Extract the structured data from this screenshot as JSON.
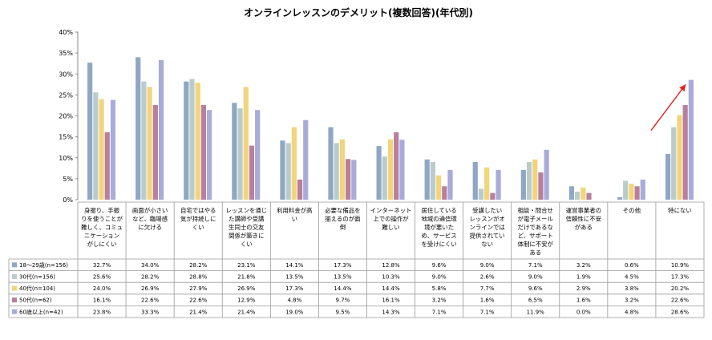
{
  "chart_data": {
    "type": "bar",
    "title": "オンラインレッスンのデメリット(複数回答)(年代別)",
    "ylim": [
      0,
      40
    ],
    "ytick_labels": [
      "0%",
      "5%",
      "10%",
      "15%",
      "20%",
      "25%",
      "30%",
      "35%",
      "40%"
    ],
    "grid": false,
    "legend": "table-bottom",
    "categories": [
      [
        "身振り、手振",
        "りを使うことが",
        "難しく、コミュ",
        "ニケーション",
        "がしにくい"
      ],
      [
        "画面が小さい",
        "など、臨場感",
        "に欠ける"
      ],
      [
        "自宅ではやる",
        "気が持続しに",
        "くい"
      ],
      [
        "レッスンを通じ",
        "た講師や受講",
        "生同士の交友",
        "関係が築きに",
        "くい"
      ],
      [
        "利用料金が高",
        "い"
      ],
      [
        "必要な備品を",
        "揃えるのが面",
        "倒"
      ],
      [
        "インターネット",
        "上での操作が",
        "難しい"
      ],
      [
        "居住している",
        "地域の通信環",
        "境が悪いた",
        "め、サービス",
        "を受けにくい"
      ],
      [
        "受講したい",
        "レッスンがオ",
        "ンラインでは",
        "提供されてい",
        "ない"
      ],
      [
        "相談・問合せ",
        "が電子メール",
        "だけであるな",
        "ど、サポート",
        "体制に不安が",
        "ある"
      ],
      [
        "運営事業者の",
        "信頼性に不安",
        "がある"
      ],
      [
        "その他"
      ],
      [
        "特にない"
      ]
    ],
    "series": [
      {
        "name": "18～29歳(n=156)",
        "color": "#8fa7c4",
        "values": [
          32.7,
          34.0,
          28.2,
          23.1,
          14.1,
          17.3,
          12.8,
          9.6,
          9.0,
          7.1,
          3.2,
          0.6,
          10.9
        ],
        "labels": [
          "32.7%",
          "34.0%",
          "28.2%",
          "23.1%",
          "14.1%",
          "17.3%",
          "12.8%",
          "9.6%",
          "9.0%",
          "7.1%",
          "3.2%",
          "0.6%",
          "10.9%"
        ]
      },
      {
        "name": "30代(n=156)",
        "color": "#b9cccb",
        "values": [
          25.6,
          28.2,
          28.8,
          21.8,
          13.5,
          13.5,
          10.3,
          9.0,
          2.6,
          9.0,
          1.9,
          4.5,
          17.3
        ],
        "labels": [
          "25.6%",
          "28.2%",
          "28.8%",
          "21.8%",
          "13.5%",
          "13.5%",
          "10.3%",
          "9.0%",
          "2.6%",
          "9.0%",
          "1.9%",
          "4.5%",
          "17.3%"
        ]
      },
      {
        "name": "40代(n=104)",
        "color": "#f2d47c",
        "values": [
          24.0,
          26.9,
          27.9,
          26.9,
          17.3,
          14.4,
          14.4,
          5.8,
          7.7,
          9.6,
          2.9,
          3.8,
          20.2
        ],
        "labels": [
          "24.0%",
          "26.9%",
          "27.9%",
          "26.9%",
          "17.3%",
          "14.4%",
          "14.4%",
          "5.8%",
          "7.7%",
          "9.6%",
          "2.9%",
          "3.8%",
          "20.2%"
        ]
      },
      {
        "name": "50代(n=62)",
        "color": "#b7809c",
        "values": [
          16.1,
          22.6,
          22.6,
          12.9,
          4.8,
          9.7,
          16.1,
          3.2,
          1.6,
          6.5,
          1.6,
          3.2,
          22.6
        ],
        "labels": [
          "16.1%",
          "22.6%",
          "22.6%",
          "12.9%",
          "4.8%",
          "9.7%",
          "16.1%",
          "3.2%",
          "1.6%",
          "6.5%",
          "1.6%",
          "3.2%",
          "22.6%"
        ]
      },
      {
        "name": "60歳以上(n=42)",
        "color": "#a9abd8",
        "values": [
          23.8,
          33.3,
          21.4,
          21.4,
          19.0,
          9.5,
          14.3,
          7.1,
          7.1,
          11.9,
          0.0,
          4.8,
          28.6
        ],
        "labels": [
          "23.8%",
          "33.3%",
          "21.4%",
          "21.4%",
          "19.0%",
          "9.5%",
          "14.3%",
          "7.1%",
          "7.1%",
          "11.9%",
          "0.0%",
          "4.8%",
          "28.6%"
        ]
      }
    ],
    "annotation": {
      "type": "arrow",
      "color": "#e02020"
    }
  }
}
